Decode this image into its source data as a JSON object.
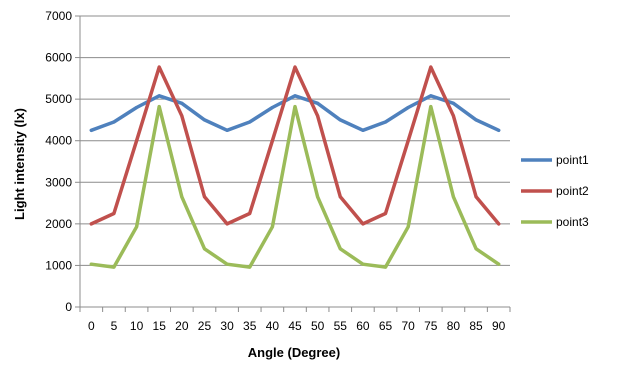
{
  "chart_data": {
    "type": "line",
    "title": "",
    "xlabel": "Angle (Degree)",
    "ylabel": "Light intensity (lx)",
    "categories": [
      "0",
      "5",
      "10",
      "15",
      "20",
      "25",
      "30",
      "35",
      "40",
      "45",
      "50",
      "55",
      "60",
      "65",
      "70",
      "75",
      "80",
      "85",
      "90"
    ],
    "ylim": [
      0,
      7000
    ],
    "yticks": [
      0,
      1000,
      2000,
      3000,
      4000,
      5000,
      6000,
      7000
    ],
    "grid": "horizontal",
    "legend": "right",
    "series": [
      {
        "name": "point1",
        "color": "#4F81BD",
        "values": [
          4250,
          4450,
          4800,
          5080,
          4900,
          4500,
          4250,
          4450,
          4800,
          5080,
          4900,
          4500,
          4250,
          4450,
          4800,
          5080,
          4900,
          4500,
          4250
        ]
      },
      {
        "name": "point2",
        "color": "#C0504D",
        "values": [
          2000,
          2250,
          4000,
          5770,
          4600,
          2650,
          2000,
          2250,
          4000,
          5770,
          4600,
          2650,
          2000,
          2250,
          4000,
          5770,
          4600,
          2650,
          2000
        ]
      },
      {
        "name": "point3",
        "color": "#9BBB59",
        "values": [
          1030,
          960,
          1930,
          4820,
          2650,
          1400,
          1030,
          960,
          1930,
          4820,
          2650,
          1400,
          1030,
          960,
          1930,
          4820,
          2650,
          1400,
          1030
        ]
      }
    ]
  }
}
